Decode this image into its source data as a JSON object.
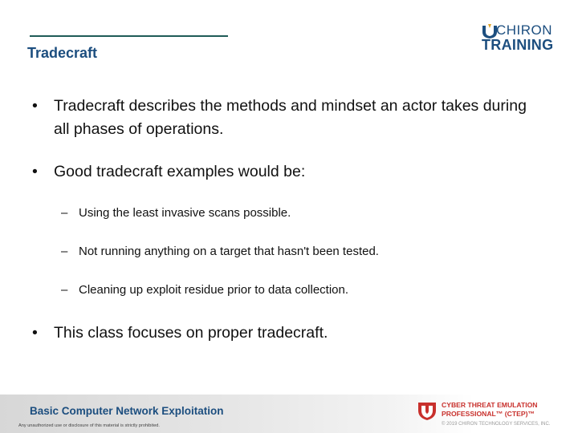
{
  "slide": {
    "title": "Tradecraft",
    "logo": {
      "line1": "CHIRON",
      "line2": "TRAINING"
    },
    "bullets": [
      {
        "text": "Tradecraft describes the methods and mindset an actor takes during all phases of operations."
      },
      {
        "text": "Good tradecraft examples would be:"
      },
      {
        "text": "This class focuses on proper tradecraft."
      }
    ],
    "sub_bullets": [
      "Using the least invasive scans possible.",
      "Not running anything on a target that hasn't been tested.",
      "Cleaning up exploit residue prior to data collection."
    ],
    "bullet_symbol": "•",
    "sub_bullet_symbol": "–"
  },
  "footer": {
    "course": "Basic Computer Network Exploitation",
    "legal": "Any unauthorized use or disclosure of this material is strictly prohibited.",
    "program_line1": "CYBER THREAT EMULATION",
    "program_line2": "PROFESSIONAL™ (CTEP)™",
    "copyright": "© 2019 CHIRON TECHNOLOGY SERVICES, INC."
  },
  "colors": {
    "title_blue": "#1c4e7f",
    "rule_green": "#1f5b57",
    "ctep_red": "#c8302c"
  }
}
